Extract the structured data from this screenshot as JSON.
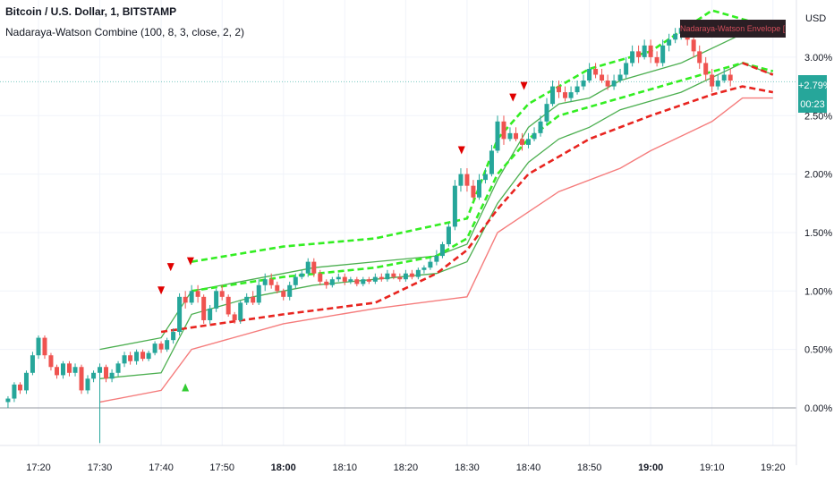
{
  "header": {
    "title": "Bitcoin / U.S. Dollar, 1, BITSTAMP",
    "indicator": "Nadaraya-Watson Combine (100, 8, 3, close, 2, 2)"
  },
  "lux_label": "Nadaraya-Watson Envelope [LUX] Repaints",
  "current": {
    "value": "+2.79%",
    "timer": "00:23"
  },
  "colors": {
    "up": "#26a69a",
    "down": "#ef5350",
    "green_line": "#4caf50",
    "bright_green": "#33ee22",
    "red_dash": "#e8241f",
    "pink": "#f57c7c",
    "grid": "#f0f3fa",
    "axis_text": "#131722"
  },
  "chart_data": {
    "type": "candlestick",
    "y_unit_label": "USD",
    "ylim": [
      -0.35,
      3.5
    ],
    "y_ticks": [
      {
        "value": 3.0,
        "label": "3.00%"
      },
      {
        "value": 2.5,
        "label": "2.50%"
      },
      {
        "value": 2.0,
        "label": "2.00%"
      },
      {
        "value": 1.5,
        "label": "1.50%"
      },
      {
        "value": 1.0,
        "label": "1.00%"
      },
      {
        "value": 0.5,
        "label": "0.50%"
      },
      {
        "value": 0.0,
        "label": "0.00%"
      }
    ],
    "x_ticks": [
      {
        "t": 17.333,
        "label": "17:20",
        "bold": false
      },
      {
        "t": 17.5,
        "label": "17:30",
        "bold": false
      },
      {
        "t": 17.667,
        "label": "17:40",
        "bold": false
      },
      {
        "t": 17.833,
        "label": "17:50",
        "bold": false
      },
      {
        "t": 18.0,
        "label": "18:00",
        "bold": true
      },
      {
        "t": 18.167,
        "label": "18:10",
        "bold": false
      },
      {
        "t": 18.333,
        "label": "18:20",
        "bold": false
      },
      {
        "t": 18.5,
        "label": "18:30",
        "bold": false
      },
      {
        "t": 18.667,
        "label": "18:40",
        "bold": false
      },
      {
        "t": 18.833,
        "label": "18:50",
        "bold": false
      },
      {
        "t": 19.0,
        "label": "19:00",
        "bold": true
      },
      {
        "t": 19.167,
        "label": "19:10",
        "bold": false
      },
      {
        "t": 19.333,
        "label": "19:20",
        "bold": false
      }
    ],
    "current_value": 2.79,
    "envelope_lines": [
      {
        "style": "solid-green-upper",
        "points": [
          [
            17.5,
            0.5
          ],
          [
            17.667,
            0.6
          ],
          [
            17.75,
            1.0
          ],
          [
            17.917,
            1.1
          ],
          [
            18.083,
            1.2
          ],
          [
            18.25,
            1.25
          ],
          [
            18.417,
            1.3
          ],
          [
            18.5,
            1.4
          ],
          [
            18.583,
            1.95
          ],
          [
            18.667,
            2.4
          ],
          [
            18.75,
            2.6
          ],
          [
            18.833,
            2.65
          ],
          [
            18.917,
            2.8
          ],
          [
            19.083,
            2.95
          ],
          [
            19.25,
            3.2
          ],
          [
            19.333,
            3.3
          ]
        ]
      },
      {
        "style": "solid-green-lower",
        "points": [
          [
            17.5,
            0.25
          ],
          [
            17.667,
            0.3
          ],
          [
            17.75,
            0.8
          ],
          [
            17.917,
            0.95
          ],
          [
            18.083,
            1.05
          ],
          [
            18.25,
            1.1
          ],
          [
            18.417,
            1.15
          ],
          [
            18.5,
            1.25
          ],
          [
            18.583,
            1.75
          ],
          [
            18.667,
            2.1
          ],
          [
            18.75,
            2.3
          ],
          [
            18.833,
            2.4
          ],
          [
            18.917,
            2.55
          ],
          [
            19.083,
            2.7
          ],
          [
            19.25,
            2.95
          ],
          [
            19.333,
            2.85
          ]
        ]
      },
      {
        "style": "dashed-bright-green",
        "points": [
          [
            17.75,
            1.25
          ],
          [
            18.0,
            1.38
          ],
          [
            18.25,
            1.45
          ],
          [
            18.5,
            1.62
          ],
          [
            18.583,
            2.3
          ],
          [
            18.667,
            2.6
          ],
          [
            18.833,
            2.9
          ],
          [
            19.0,
            3.05
          ],
          [
            19.167,
            3.4
          ],
          [
            19.333,
            3.25
          ]
        ]
      },
      {
        "style": "dashed-bright-green",
        "points": [
          [
            17.75,
            1.0
          ],
          [
            18.0,
            1.12
          ],
          [
            18.25,
            1.2
          ],
          [
            18.417,
            1.3
          ],
          [
            18.5,
            1.45
          ],
          [
            18.583,
            2.0
          ],
          [
            18.667,
            2.3
          ],
          [
            18.75,
            2.5
          ],
          [
            18.917,
            2.65
          ],
          [
            19.083,
            2.8
          ],
          [
            19.25,
            2.95
          ],
          [
            19.333,
            2.88
          ]
        ]
      },
      {
        "style": "dashed-red",
        "points": [
          [
            17.667,
            0.65
          ],
          [
            18.0,
            0.8
          ],
          [
            18.25,
            0.9
          ],
          [
            18.417,
            1.15
          ],
          [
            18.5,
            1.35
          ],
          [
            18.583,
            1.7
          ],
          [
            18.667,
            2.0
          ],
          [
            18.833,
            2.3
          ],
          [
            19.0,
            2.5
          ],
          [
            19.167,
            2.68
          ],
          [
            19.25,
            2.75
          ],
          [
            19.333,
            2.7
          ]
        ]
      },
      {
        "style": "dashed-red",
        "points": [
          [
            19.25,
            2.95
          ],
          [
            19.333,
            2.85
          ]
        ]
      },
      {
        "style": "solid-pink",
        "points": [
          [
            17.5,
            0.05
          ],
          [
            17.667,
            0.15
          ],
          [
            17.75,
            0.5
          ],
          [
            18.0,
            0.72
          ],
          [
            18.25,
            0.85
          ],
          [
            18.5,
            0.95
          ],
          [
            18.583,
            1.5
          ],
          [
            18.75,
            1.85
          ],
          [
            18.917,
            2.05
          ],
          [
            19.0,
            2.2
          ],
          [
            19.167,
            2.45
          ],
          [
            19.25,
            2.65
          ],
          [
            19.333,
            2.65
          ]
        ]
      }
    ],
    "candles": [
      [
        17.25,
        0.05,
        0.08,
        0.1,
        0.0
      ],
      [
        17.267,
        0.08,
        0.2,
        0.22,
        0.05
      ],
      [
        17.283,
        0.2,
        0.15,
        0.22,
        0.12
      ],
      [
        17.3,
        0.15,
        0.3,
        0.32,
        0.12
      ],
      [
        17.317,
        0.3,
        0.45,
        0.48,
        0.28
      ],
      [
        17.333,
        0.45,
        0.6,
        0.62,
        0.42
      ],
      [
        17.35,
        0.6,
        0.45,
        0.62,
        0.42
      ],
      [
        17.367,
        0.45,
        0.35,
        0.47,
        0.32
      ],
      [
        17.383,
        0.35,
        0.28,
        0.37,
        0.25
      ],
      [
        17.4,
        0.28,
        0.38,
        0.4,
        0.25
      ],
      [
        17.417,
        0.38,
        0.3,
        0.4,
        0.27
      ],
      [
        17.433,
        0.3,
        0.35,
        0.38,
        0.27
      ],
      [
        17.45,
        0.35,
        0.15,
        0.37,
        0.12
      ],
      [
        17.467,
        0.15,
        0.25,
        0.28,
        0.12
      ],
      [
        17.483,
        0.25,
        0.3,
        0.32,
        0.22
      ],
      [
        17.5,
        0.3,
        0.35,
        0.38,
        -0.3
      ],
      [
        17.517,
        0.35,
        0.25,
        0.37,
        0.22
      ],
      [
        17.533,
        0.25,
        0.3,
        0.33,
        0.22
      ],
      [
        17.55,
        0.3,
        0.38,
        0.4,
        0.27
      ],
      [
        17.567,
        0.38,
        0.45,
        0.48,
        0.35
      ],
      [
        17.583,
        0.45,
        0.4,
        0.48,
        0.37
      ],
      [
        17.6,
        0.4,
        0.48,
        0.5,
        0.37
      ],
      [
        17.617,
        0.48,
        0.42,
        0.5,
        0.4
      ],
      [
        17.633,
        0.42,
        0.47,
        0.49,
        0.4
      ],
      [
        17.65,
        0.47,
        0.55,
        0.57,
        0.45
      ],
      [
        17.667,
        0.55,
        0.5,
        0.57,
        0.47
      ],
      [
        17.683,
        0.5,
        0.58,
        0.6,
        0.48
      ],
      [
        17.7,
        0.58,
        0.65,
        0.68,
        0.55
      ],
      [
        17.717,
        0.65,
        0.95,
        0.98,
        0.62
      ],
      [
        17.733,
        0.95,
        0.9,
        1.0,
        0.85
      ],
      [
        17.75,
        0.9,
        1.0,
        1.05,
        0.88
      ],
      [
        17.767,
        1.0,
        0.95,
        1.05,
        0.9
      ],
      [
        17.783,
        0.95,
        0.75,
        0.97,
        0.72
      ],
      [
        17.8,
        0.75,
        0.85,
        0.88,
        0.72
      ],
      [
        17.817,
        0.85,
        1.0,
        1.02,
        0.82
      ],
      [
        17.833,
        1.0,
        0.95,
        1.05,
        0.92
      ],
      [
        17.85,
        0.95,
        0.8,
        0.97,
        0.78
      ],
      [
        17.867,
        0.8,
        0.75,
        0.82,
        0.72
      ],
      [
        17.883,
        0.75,
        0.9,
        0.92,
        0.72
      ],
      [
        17.9,
        0.9,
        0.95,
        0.98,
        0.88
      ],
      [
        17.917,
        0.95,
        0.9,
        1.0,
        0.88
      ],
      [
        17.933,
        0.9,
        1.05,
        1.1,
        0.88
      ],
      [
        17.95,
        1.05,
        1.1,
        1.15,
        1.0
      ],
      [
        17.967,
        1.1,
        1.05,
        1.15,
        1.02
      ],
      [
        17.983,
        1.05,
        1.0,
        1.08,
        0.98
      ],
      [
        18.0,
        1.0,
        0.95,
        1.02,
        0.92
      ],
      [
        18.017,
        0.95,
        1.05,
        1.08,
        0.92
      ],
      [
        18.033,
        1.05,
        1.12,
        1.15,
        1.02
      ],
      [
        18.05,
        1.12,
        1.15,
        1.18,
        1.1
      ],
      [
        18.067,
        1.15,
        1.25,
        1.28,
        1.12
      ],
      [
        18.083,
        1.25,
        1.15,
        1.28,
        1.12
      ],
      [
        18.1,
        1.15,
        1.08,
        1.18,
        1.05
      ],
      [
        18.117,
        1.08,
        1.05,
        1.1,
        1.02
      ],
      [
        18.133,
        1.05,
        1.1,
        1.12,
        1.03
      ],
      [
        18.15,
        1.1,
        1.12,
        1.15,
        1.08
      ],
      [
        18.167,
        1.12,
        1.08,
        1.15,
        1.05
      ],
      [
        18.183,
        1.08,
        1.1,
        1.12,
        1.06
      ],
      [
        18.2,
        1.1,
        1.06,
        1.12,
        1.04
      ],
      [
        18.217,
        1.06,
        1.1,
        1.12,
        1.04
      ],
      [
        18.233,
        1.1,
        1.08,
        1.12,
        1.06
      ],
      [
        18.25,
        1.08,
        1.12,
        1.15,
        1.06
      ],
      [
        18.267,
        1.12,
        1.1,
        1.15,
        1.08
      ],
      [
        18.283,
        1.1,
        1.15,
        1.18,
        1.08
      ],
      [
        18.3,
        1.15,
        1.12,
        1.18,
        1.1
      ],
      [
        18.317,
        1.12,
        1.1,
        1.15,
        1.08
      ],
      [
        18.333,
        1.1,
        1.15,
        1.18,
        1.08
      ],
      [
        18.35,
        1.15,
        1.12,
        1.18,
        1.1
      ],
      [
        18.367,
        1.12,
        1.18,
        1.2,
        1.1
      ],
      [
        18.383,
        1.18,
        1.2,
        1.22,
        1.15
      ],
      [
        18.4,
        1.2,
        1.25,
        1.28,
        1.18
      ],
      [
        18.417,
        1.25,
        1.3,
        1.35,
        1.22
      ],
      [
        18.433,
        1.3,
        1.4,
        1.42,
        1.28
      ],
      [
        18.45,
        1.4,
        1.55,
        1.58,
        1.38
      ],
      [
        18.467,
        1.55,
        1.9,
        1.95,
        1.52
      ],
      [
        18.483,
        1.9,
        2.0,
        2.05,
        1.85
      ],
      [
        18.5,
        2.0,
        1.9,
        2.05,
        1.85
      ],
      [
        18.517,
        1.9,
        1.8,
        1.95,
        1.78
      ],
      [
        18.533,
        1.8,
        1.95,
        2.0,
        1.78
      ],
      [
        18.55,
        1.95,
        2.0,
        2.05,
        1.92
      ],
      [
        18.567,
        2.0,
        2.2,
        2.25,
        1.98
      ],
      [
        18.583,
        2.2,
        2.45,
        2.5,
        2.18
      ],
      [
        18.6,
        2.45,
        2.3,
        2.5,
        2.25
      ],
      [
        18.617,
        2.3,
        2.35,
        2.4,
        2.28
      ],
      [
        18.633,
        2.35,
        2.3,
        2.4,
        2.28
      ],
      [
        18.65,
        2.3,
        2.25,
        2.35,
        2.2
      ],
      [
        18.667,
        2.25,
        2.3,
        2.35,
        2.22
      ],
      [
        18.683,
        2.3,
        2.35,
        2.4,
        2.28
      ],
      [
        18.7,
        2.35,
        2.45,
        2.5,
        2.32
      ],
      [
        18.717,
        2.45,
        2.6,
        2.65,
        2.42
      ],
      [
        18.733,
        2.6,
        2.75,
        2.8,
        2.58
      ],
      [
        18.75,
        2.75,
        2.7,
        2.8,
        2.65
      ],
      [
        18.767,
        2.7,
        2.65,
        2.75,
        2.62
      ],
      [
        18.783,
        2.65,
        2.7,
        2.75,
        2.62
      ],
      [
        18.8,
        2.7,
        2.75,
        2.8,
        2.68
      ],
      [
        18.817,
        2.75,
        2.8,
        2.85,
        2.72
      ],
      [
        18.833,
        2.8,
        2.9,
        2.95,
        2.78
      ],
      [
        18.85,
        2.9,
        2.85,
        2.95,
        2.82
      ],
      [
        18.867,
        2.85,
        2.8,
        2.9,
        2.78
      ],
      [
        18.883,
        2.8,
        2.75,
        2.85,
        2.72
      ],
      [
        18.9,
        2.75,
        2.8,
        2.85,
        2.72
      ],
      [
        18.917,
        2.8,
        2.85,
        2.9,
        2.78
      ],
      [
        18.933,
        2.85,
        2.95,
        3.0,
        2.82
      ],
      [
        18.95,
        2.95,
        3.05,
        3.1,
        2.92
      ],
      [
        18.967,
        3.05,
        3.0,
        3.1,
        2.95
      ],
      [
        18.983,
        3.0,
        3.1,
        3.15,
        2.98
      ],
      [
        19.0,
        3.1,
        3.0,
        3.15,
        2.95
      ],
      [
        19.017,
        3.0,
        2.95,
        3.05,
        2.92
      ],
      [
        19.033,
        2.95,
        3.1,
        3.15,
        2.92
      ],
      [
        19.05,
        3.1,
        3.15,
        3.2,
        3.05
      ],
      [
        19.067,
        3.15,
        3.2,
        3.25,
        3.12
      ],
      [
        19.083,
        3.2,
        3.25,
        3.3,
        3.15
      ],
      [
        19.1,
        3.25,
        3.15,
        3.3,
        3.1
      ],
      [
        19.117,
        3.15,
        3.05,
        3.2,
        3.0
      ],
      [
        19.133,
        3.05,
        2.95,
        3.1,
        2.9
      ],
      [
        19.15,
        2.95,
        2.85,
        3.0,
        2.8
      ],
      [
        19.167,
        2.85,
        2.75,
        2.9,
        2.7
      ],
      [
        19.183,
        2.75,
        2.8,
        2.85,
        2.72
      ],
      [
        19.2,
        2.8,
        2.85,
        2.9,
        2.78
      ],
      [
        19.217,
        2.85,
        2.8,
        2.9,
        2.75
      ]
    ],
    "signals": {
      "down": [
        [
          17.693,
          1.2
        ],
        [
          17.747,
          1.25
        ],
        [
          17.667,
          1.0
        ],
        [
          18.485,
          2.2
        ],
        [
          18.625,
          2.65
        ],
        [
          18.655,
          2.75
        ]
      ],
      "up": [
        [
          17.733,
          0.18
        ]
      ]
    }
  }
}
